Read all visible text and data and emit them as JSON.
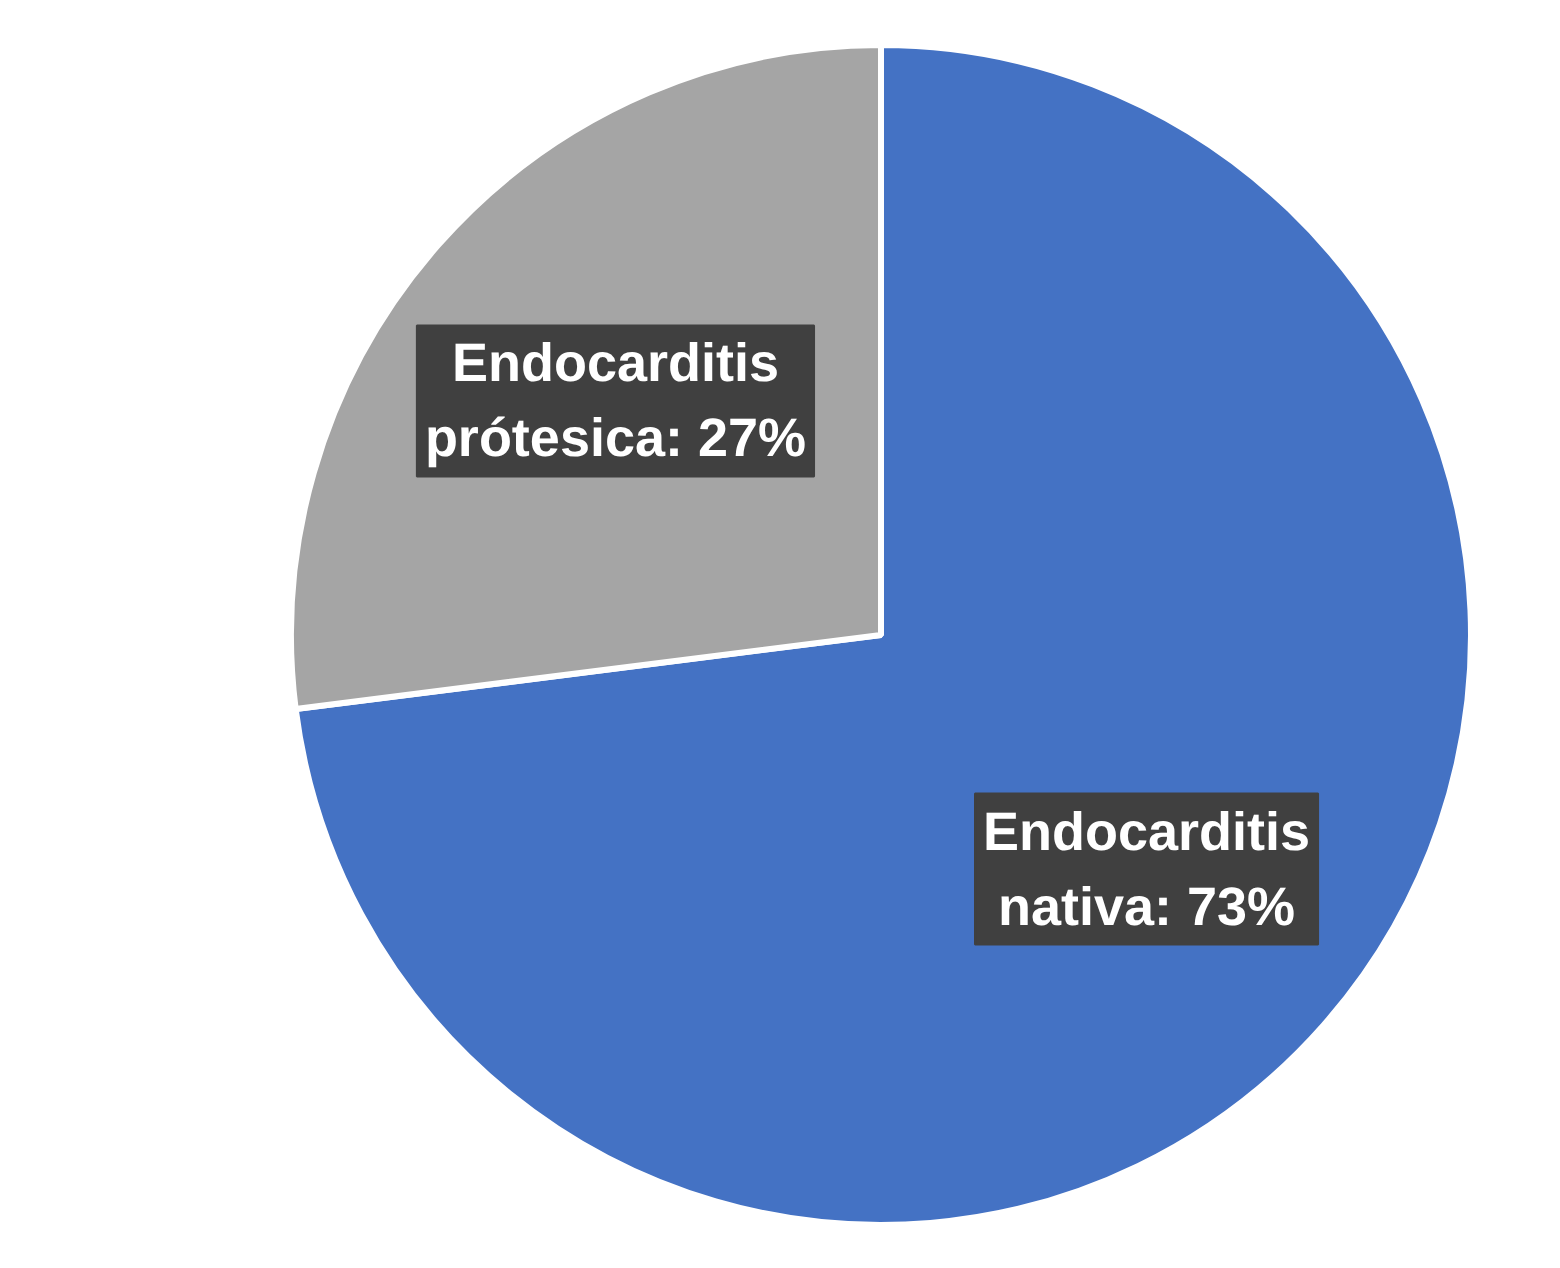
{
  "chart_data": {
    "type": "pie",
    "categories": [
      "Endocarditis nativa",
      "Endocarditis prótesica"
    ],
    "values": [
      73,
      27
    ],
    "colors": [
      "#4472c4",
      "#a5a5a5"
    ],
    "value_labels": [
      "73%",
      "27%"
    ]
  }
}
